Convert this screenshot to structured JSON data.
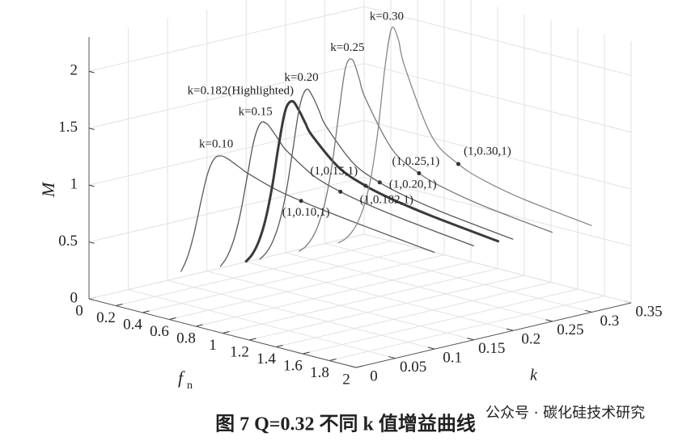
{
  "chart_data": {
    "type": "line3d",
    "caption": "图 7  Q=0.32 不同 k 值增益曲线",
    "watermark": "公众号 · 碳化硅技术研究",
    "x_label": "f",
    "x_label_sub": "n",
    "y_label": "k",
    "z_label": "M",
    "xlim": [
      0,
      2
    ],
    "ylim": [
      0,
      0.35
    ],
    "zlim": [
      0,
      2.3
    ],
    "xticks": [
      0,
      0.2,
      0.4,
      0.6,
      0.8,
      1,
      1.2,
      1.4,
      1.6,
      1.8,
      2
    ],
    "yticks": [
      0,
      0.05,
      0.1,
      0.15,
      0.2,
      0.25,
      0.3,
      0.35
    ],
    "zticks": [
      0,
      0.5,
      1,
      1.5,
      2
    ],
    "grid": true,
    "x": [
      0.1,
      0.15,
      0.2,
      0.25,
      0.3,
      0.35,
      0.4,
      0.45,
      0.5,
      0.55,
      0.6,
      0.8,
      1,
      1.2,
      1.5,
      2
    ],
    "series": [
      {
        "name": "k=0.10",
        "k": 0.1,
        "color": "#5a5a5a",
        "values": [
          0.106,
          0.254,
          0.481,
          0.769,
          1.03,
          1.176,
          1.215,
          1.205,
          1.178,
          1.15,
          1.123,
          1.047,
          1,
          0.964,
          0.918,
          0.849
        ]
      },
      {
        "name": "k=0.15",
        "k": 0.15,
        "color": "#555555",
        "values": [
          0.07,
          0.17,
          0.331,
          0.577,
          0.909,
          1.242,
          1.419,
          1.43,
          1.37,
          1.299,
          1.236,
          1.079,
          1,
          0.95,
          0.896,
          0.825
        ]
      },
      {
        "name": "k=0.182(Highlighted)",
        "k": 0.182,
        "color": "#3a3a3a",
        "highlight": true,
        "values": [
          0.058,
          0.139,
          0.27,
          0.475,
          0.779,
          1.166,
          1.485,
          1.578,
          1.514,
          1.412,
          1.32,
          1.1,
          1,
          0.942,
          0.883,
          0.811
        ]
      },
      {
        "name": "k=0.20",
        "k": 0.2,
        "color": "#5a5a5a",
        "values": [
          0.052,
          0.126,
          0.244,
          0.429,
          0.709,
          1.098,
          1.484,
          1.652,
          1.6,
          1.483,
          1.371,
          1.112,
          1,
          0.937,
          0.875,
          0.802
        ]
      },
      {
        "name": "k=0.25",
        "k": 0.25,
        "color": "#777777",
        "values": [
          0.042,
          0.099,
          0.191,
          0.333,
          0.553,
          0.888,
          1.349,
          1.763,
          1.848,
          1.705,
          1.534,
          1.148,
          1,
          0.924,
          0.855,
          0.781
        ]
      },
      {
        "name": "k=0.30",
        "k": 0.3,
        "color": "#888888",
        "values": [
          0.035,
          0.082,
          0.157,
          0.27,
          0.444,
          0.714,
          1.131,
          1.68,
          2.04,
          1.962,
          1.73,
          1.185,
          1,
          0.911,
          0.836,
          0.76
        ]
      }
    ],
    "markers": [
      {
        "label": "(1,0.10,1)",
        "x": 1,
        "k": 0.1,
        "M": 1
      },
      {
        "label": "(1,0.15,1)",
        "x": 1,
        "k": 0.15,
        "M": 1
      },
      {
        "label": "(1,0.182,1)",
        "x": 1,
        "k": 0.182,
        "M": 1
      },
      {
        "label": "(1,0.20,1)",
        "x": 1,
        "k": 0.2,
        "M": 1
      },
      {
        "label": "(1,0.25,1)",
        "x": 1,
        "k": 0.25,
        "M": 1
      },
      {
        "label": "(1,0.30,1)",
        "x": 1,
        "k": 0.3,
        "M": 1
      }
    ]
  }
}
